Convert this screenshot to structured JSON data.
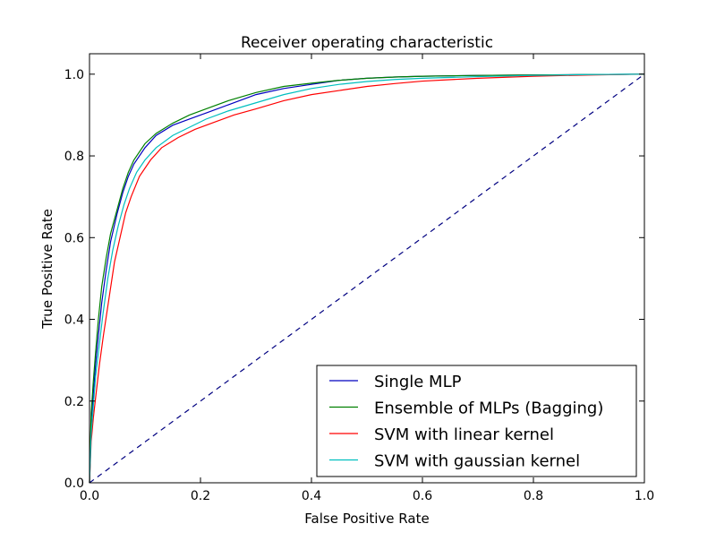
{
  "chart_data": {
    "type": "line",
    "title": "Receiver operating characteristic",
    "xlabel": "False Positive Rate",
    "ylabel": "True Positive Rate",
    "xlim": [
      0.0,
      1.0
    ],
    "ylim": [
      0.0,
      1.05
    ],
    "xticks": [
      0.0,
      0.2,
      0.4,
      0.6,
      0.8,
      1.0
    ],
    "xtick_labels": [
      "0.0",
      "0.2",
      "0.4",
      "0.6",
      "0.8",
      "1.0"
    ],
    "yticks": [
      0.0,
      0.2,
      0.4,
      0.6,
      0.8,
      1.0
    ],
    "ytick_labels": [
      "0.0",
      "0.2",
      "0.4",
      "0.6",
      "0.8",
      "1.0"
    ],
    "grid": false,
    "legend_position": "bottom-right",
    "series": [
      {
        "name": "Single MLP",
        "color": "#0000bf",
        "points": [
          [
            0,
            0
          ],
          [
            0.003,
            0.15
          ],
          [
            0.007,
            0.22
          ],
          [
            0.011,
            0.29
          ],
          [
            0.016,
            0.36
          ],
          [
            0.022,
            0.44
          ],
          [
            0.03,
            0.52
          ],
          [
            0.038,
            0.59
          ],
          [
            0.05,
            0.66
          ],
          [
            0.06,
            0.71
          ],
          [
            0.07,
            0.75
          ],
          [
            0.08,
            0.78
          ],
          [
            0.1,
            0.82
          ],
          [
            0.12,
            0.85
          ],
          [
            0.15,
            0.875
          ],
          [
            0.18,
            0.89
          ],
          [
            0.21,
            0.905
          ],
          [
            0.25,
            0.925
          ],
          [
            0.3,
            0.95
          ],
          [
            0.35,
            0.965
          ],
          [
            0.4,
            0.975
          ],
          [
            0.45,
            0.985
          ],
          [
            0.5,
            0.99
          ],
          [
            0.55,
            0.993
          ],
          [
            0.6,
            0.995
          ],
          [
            0.7,
            0.997
          ],
          [
            0.8,
            0.998
          ],
          [
            0.9,
            0.999
          ],
          [
            1.0,
            1.0
          ]
        ]
      },
      {
        "name": "Ensemble of MLPs (Bagging)",
        "color": "#008000",
        "points": [
          [
            0,
            0
          ],
          [
            0.003,
            0.17
          ],
          [
            0.007,
            0.25
          ],
          [
            0.011,
            0.32
          ],
          [
            0.016,
            0.4
          ],
          [
            0.022,
            0.48
          ],
          [
            0.03,
            0.55
          ],
          [
            0.038,
            0.61
          ],
          [
            0.05,
            0.67
          ],
          [
            0.06,
            0.72
          ],
          [
            0.07,
            0.76
          ],
          [
            0.08,
            0.79
          ],
          [
            0.1,
            0.83
          ],
          [
            0.12,
            0.855
          ],
          [
            0.15,
            0.88
          ],
          [
            0.18,
            0.9
          ],
          [
            0.21,
            0.915
          ],
          [
            0.25,
            0.935
          ],
          [
            0.3,
            0.955
          ],
          [
            0.35,
            0.97
          ],
          [
            0.4,
            0.978
          ],
          [
            0.45,
            0.985
          ],
          [
            0.5,
            0.99
          ],
          [
            0.55,
            0.993
          ],
          [
            0.6,
            0.995
          ],
          [
            0.7,
            0.997
          ],
          [
            0.8,
            0.998
          ],
          [
            0.9,
            0.999
          ],
          [
            1.0,
            1.0
          ]
        ]
      },
      {
        "name": "SVM with linear kernel",
        "color": "#ff0000",
        "points": [
          [
            0,
            0
          ],
          [
            0.003,
            0.1
          ],
          [
            0.007,
            0.16
          ],
          [
            0.012,
            0.22
          ],
          [
            0.018,
            0.29
          ],
          [
            0.025,
            0.36
          ],
          [
            0.035,
            0.45
          ],
          [
            0.045,
            0.54
          ],
          [
            0.055,
            0.6
          ],
          [
            0.065,
            0.66
          ],
          [
            0.075,
            0.7
          ],
          [
            0.09,
            0.75
          ],
          [
            0.11,
            0.79
          ],
          [
            0.13,
            0.82
          ],
          [
            0.16,
            0.845
          ],
          [
            0.19,
            0.865
          ],
          [
            0.22,
            0.88
          ],
          [
            0.26,
            0.9
          ],
          [
            0.3,
            0.915
          ],
          [
            0.35,
            0.935
          ],
          [
            0.4,
            0.95
          ],
          [
            0.45,
            0.96
          ],
          [
            0.5,
            0.97
          ],
          [
            0.55,
            0.977
          ],
          [
            0.6,
            0.983
          ],
          [
            0.7,
            0.99
          ],
          [
            0.8,
            0.995
          ],
          [
            0.9,
            0.998
          ],
          [
            1.0,
            1.0
          ]
        ]
      },
      {
        "name": "SVM with gaussian kernel",
        "color": "#00bfbf",
        "points": [
          [
            0,
            0
          ],
          [
            0.003,
            0.12
          ],
          [
            0.007,
            0.19
          ],
          [
            0.011,
            0.26
          ],
          [
            0.017,
            0.33
          ],
          [
            0.024,
            0.41
          ],
          [
            0.033,
            0.5
          ],
          [
            0.042,
            0.57
          ],
          [
            0.052,
            0.63
          ],
          [
            0.062,
            0.68
          ],
          [
            0.072,
            0.72
          ],
          [
            0.085,
            0.76
          ],
          [
            0.1,
            0.79
          ],
          [
            0.12,
            0.82
          ],
          [
            0.15,
            0.85
          ],
          [
            0.18,
            0.87
          ],
          [
            0.21,
            0.89
          ],
          [
            0.25,
            0.91
          ],
          [
            0.3,
            0.93
          ],
          [
            0.35,
            0.95
          ],
          [
            0.4,
            0.965
          ],
          [
            0.45,
            0.975
          ],
          [
            0.5,
            0.982
          ],
          [
            0.55,
            0.987
          ],
          [
            0.6,
            0.99
          ],
          [
            0.7,
            0.994
          ],
          [
            0.8,
            0.997
          ],
          [
            0.9,
            0.999
          ],
          [
            1.0,
            1.0
          ]
        ]
      },
      {
        "color": "#000080",
        "dashed": true,
        "points": [
          [
            0,
            0
          ],
          [
            1,
            1
          ]
        ]
      }
    ]
  }
}
